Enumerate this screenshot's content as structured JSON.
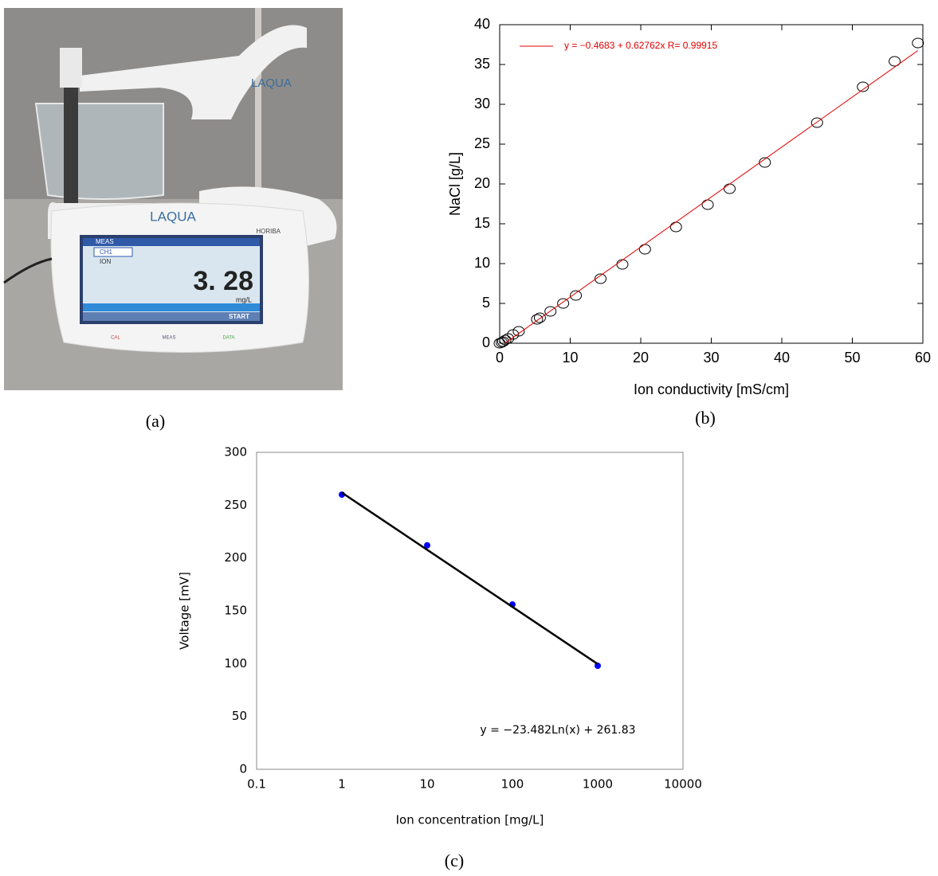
{
  "panel_labels": [
    "(a)",
    "(b)",
    "(c)"
  ],
  "photo": {
    "brand": "LAQUA",
    "maker": "HORIBA",
    "reading": "3. 28",
    "unit": "mg/L",
    "channel": "CH1",
    "mode": "ION",
    "status": "MEAS",
    "button": "START",
    "keys": [
      "CAL",
      "MEAS",
      "DATA"
    ]
  },
  "chart_data": [
    {
      "type": "scatter",
      "xlabel": "Ion conductivity [mS/cm]",
      "ylabel": "NaCl [g/L]",
      "xlim": [
        0,
        60
      ],
      "ylim": [
        0,
        40
      ],
      "xticks": [
        0,
        10,
        20,
        30,
        40,
        50,
        60
      ],
      "yticks": [
        0,
        5,
        10,
        15,
        20,
        25,
        30,
        35,
        40
      ],
      "grid": false,
      "legend": "upper left",
      "series": [
        {
          "style": "open-circle",
          "color": "#000000",
          "x": [
            0,
            0.3,
            0.5,
            0.8,
            1.2,
            1.9,
            2.7,
            5.3,
            5.7,
            7.2,
            9,
            10.8,
            14.3,
            17.4,
            20.6,
            25,
            29.5,
            32.6,
            37.6,
            45,
            51.5,
            56,
            59.3
          ],
          "values": [
            0,
            0.1,
            0.2,
            0.4,
            0.6,
            1.1,
            1.5,
            3,
            3.2,
            4,
            5,
            6,
            8.1,
            9.9,
            11.8,
            14.6,
            17.4,
            19.4,
            22.7,
            27.7,
            32.2,
            35.4,
            37.7
          ]
        },
        {
          "name": "y = −0.4683 + 0.62762x   R= 0.99915",
          "style": "line",
          "color": "#e00000",
          "x": [
            0.75,
            59.3
          ],
          "values": [
            0,
            36.75
          ]
        }
      ]
    },
    {
      "type": "scatter",
      "xlabel": "Ion concentration [mg/L]",
      "ylabel": "Voltage [mV]",
      "xscale": "log",
      "xlim": [
        0.1,
        10000
      ],
      "ylim": [
        0,
        300
      ],
      "xticks": [
        0.1,
        1,
        10,
        100,
        1000,
        10000
      ],
      "yticks": [
        0,
        50,
        100,
        150,
        200,
        250,
        300
      ],
      "grid": false,
      "annotation": "y = −23.482Ln(x) + 261.83",
      "series": [
        {
          "style": "filled-circle",
          "color": "#0000ff",
          "x": [
            1,
            10,
            100,
            1000
          ],
          "values": [
            260,
            212,
            156,
            98
          ]
        },
        {
          "style": "line",
          "color": "#000000",
          "x": [
            1,
            1000
          ],
          "values": [
            261.83,
            99.62
          ]
        }
      ]
    }
  ]
}
